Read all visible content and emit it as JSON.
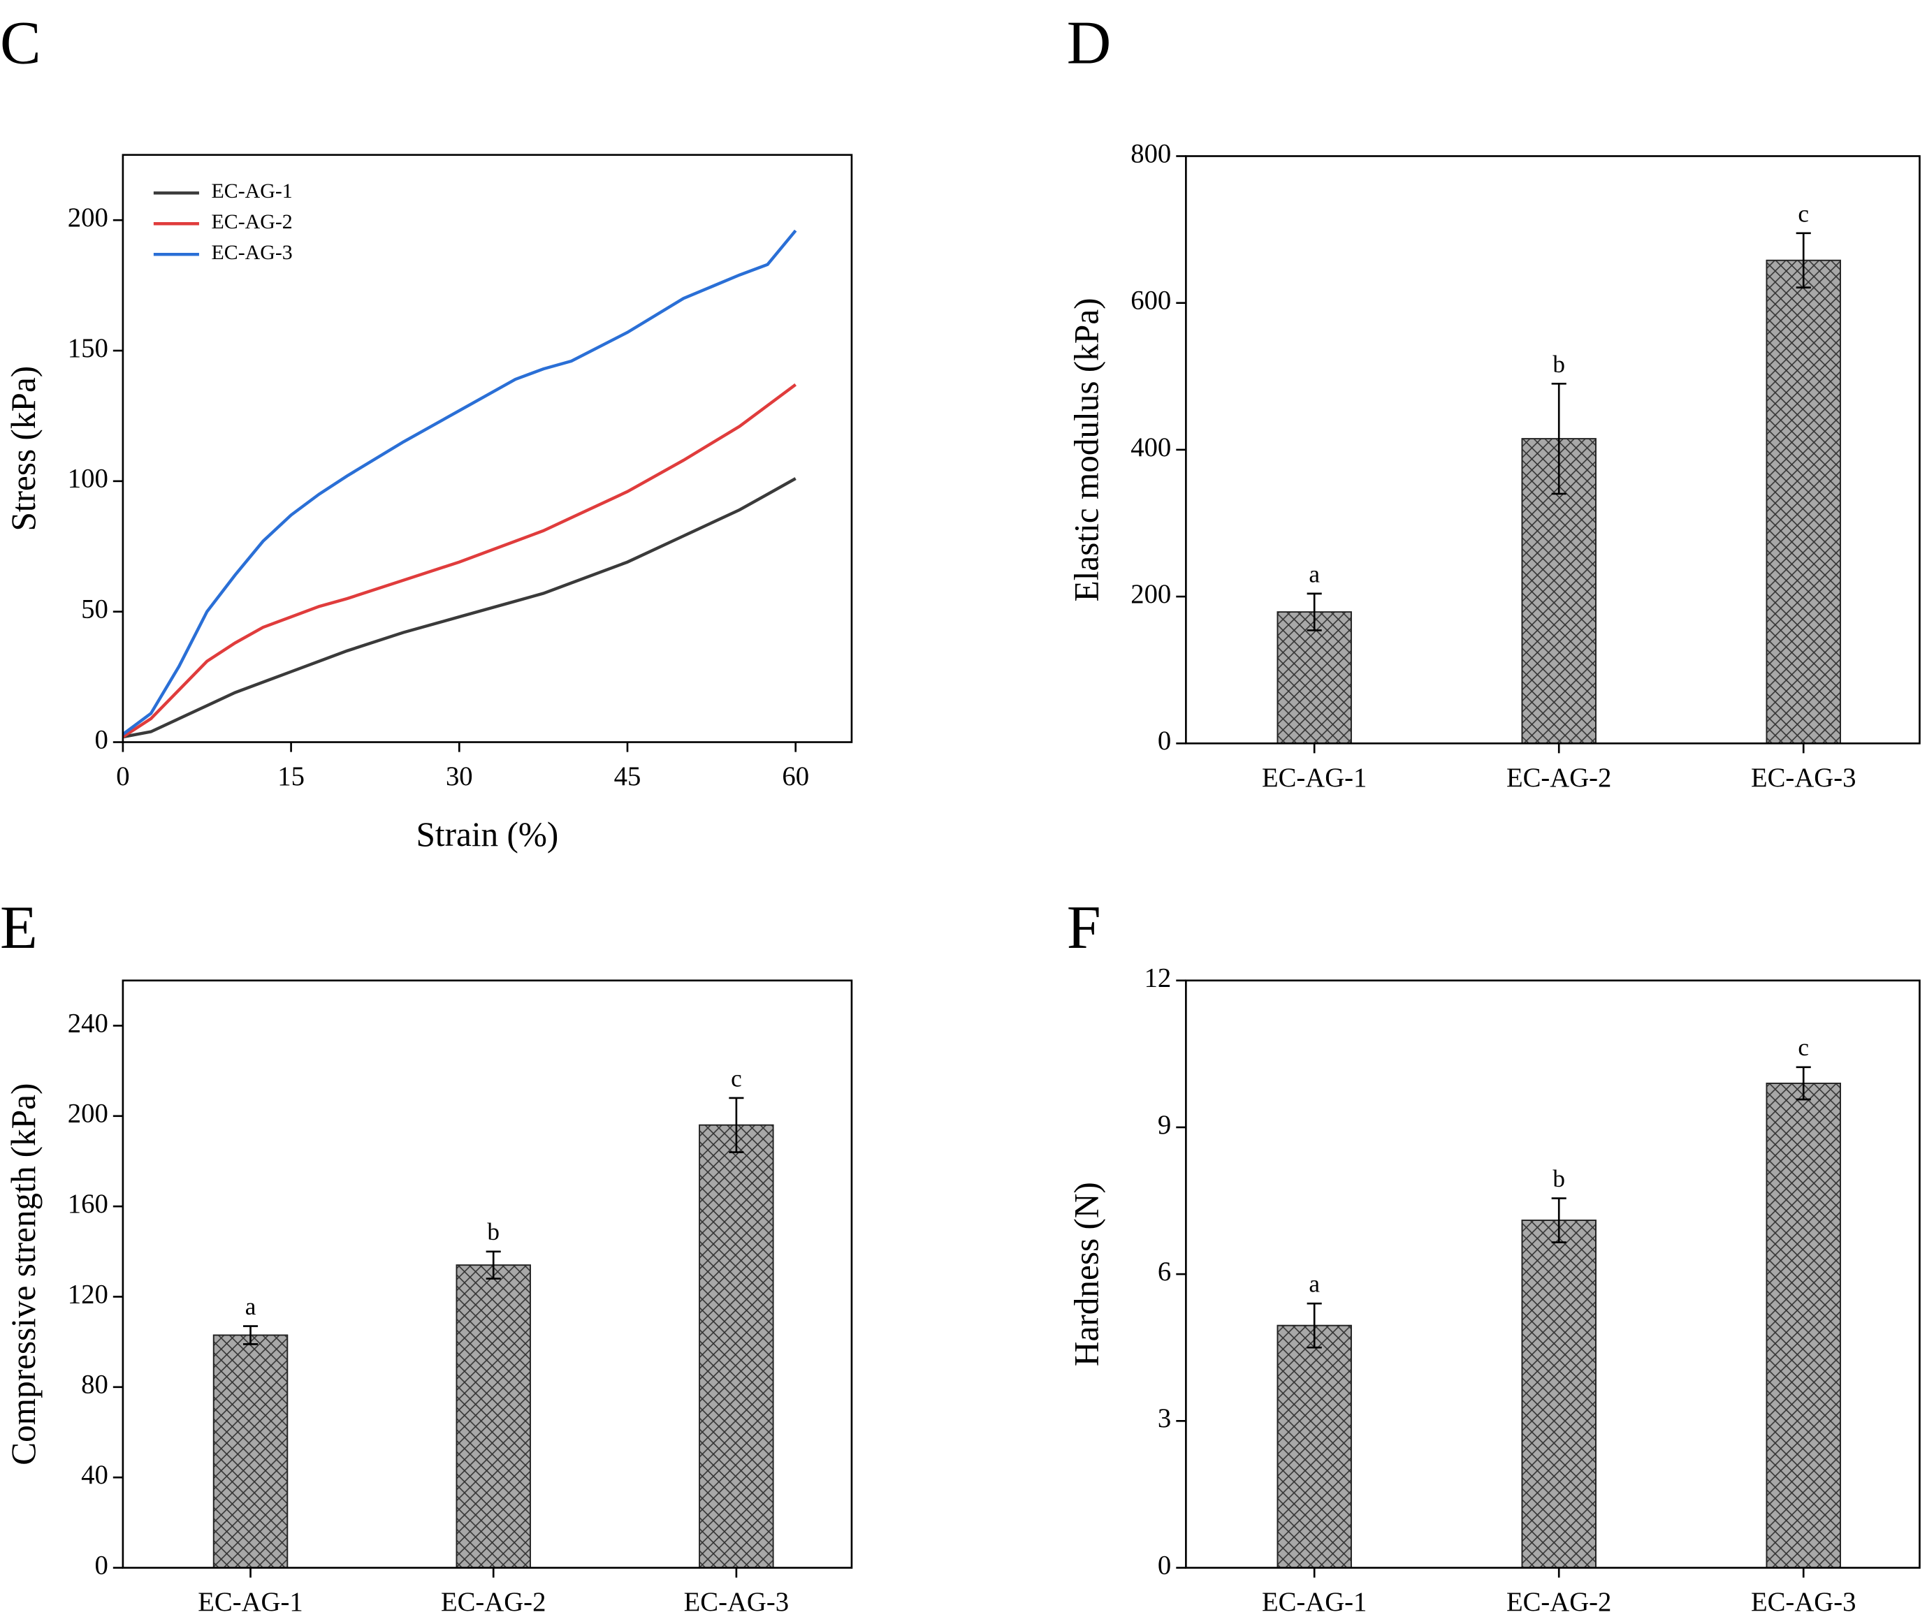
{
  "chart_data": [
    {
      "type": "line",
      "label": "C",
      "xlabel": "Strain (%)",
      "ylabel": "Stress (kPa)",
      "x": [
        0,
        2.5,
        5,
        7.5,
        10,
        12.5,
        15,
        17.5,
        20,
        25,
        30,
        35,
        37.5,
        40,
        45,
        50,
        55,
        57.5,
        60
      ],
      "series": [
        {
          "name": "EC-AG-1",
          "color": "#3a3a3a",
          "values": [
            2,
            4,
            9,
            14,
            19,
            23,
            27,
            31,
            35,
            42,
            48,
            54,
            57,
            61,
            69,
            79,
            89,
            95,
            101
          ]
        },
        {
          "name": "EC-AG-2",
          "color": "#e03c3c",
          "values": [
            2,
            9,
            20,
            31,
            38,
            44,
            48,
            52,
            55,
            62,
            69,
            77,
            81,
            86,
            96,
            108,
            121,
            129,
            137
          ]
        },
        {
          "name": "EC-AG-3",
          "color": "#2a6fd6",
          "values": [
            3,
            11,
            29,
            50,
            64,
            77,
            87,
            95,
            102,
            115,
            127,
            139,
            143,
            146,
            157,
            170,
            179,
            183,
            196
          ]
        }
      ],
      "xlim": [
        0,
        65
      ],
      "xticks": [
        0,
        15,
        30,
        45,
        60
      ],
      "ylim": [
        0,
        225
      ],
      "yticks": [
        0,
        50,
        100,
        150,
        200
      ],
      "legend": "upper-left"
    },
    {
      "type": "bar",
      "label": "D",
      "ylabel": "Elastic modulus (kPa)",
      "categories": [
        "EC-AG-1",
        "EC-AG-2",
        "EC-AG-3"
      ],
      "values": [
        179,
        415,
        658
      ],
      "errors": [
        25,
        75,
        37
      ],
      "annotations": [
        "a",
        "b",
        "c"
      ],
      "color": "#a8a8a8",
      "ylim": [
        0,
        800
      ],
      "yticks": [
        0,
        200,
        400,
        600,
        800
      ]
    },
    {
      "type": "bar",
      "label": "E",
      "ylabel": "Compressive strength (kPa)",
      "categories": [
        "EC-AG-1",
        "EC-AG-2",
        "EC-AG-3"
      ],
      "values": [
        103,
        134,
        196
      ],
      "errors": [
        4,
        6,
        12
      ],
      "annotations": [
        "a",
        "b",
        "c"
      ],
      "color": "#a8a8a8",
      "ylim": [
        0,
        260
      ],
      "yticks": [
        0,
        40,
        80,
        120,
        160,
        200,
        240
      ]
    },
    {
      "type": "bar",
      "label": "F",
      "ylabel": "Hardness (N)",
      "categories": [
        "EC-AG-1",
        "EC-AG-2",
        "EC-AG-3"
      ],
      "values": [
        4.95,
        7.1,
        9.9
      ],
      "errors": [
        0.45,
        0.45,
        0.33
      ],
      "annotations": [
        "a",
        "b",
        "c"
      ],
      "color": "#a8a8a8",
      "ylim": [
        0,
        12
      ],
      "yticks": [
        0,
        3,
        6,
        9,
        12
      ]
    }
  ]
}
